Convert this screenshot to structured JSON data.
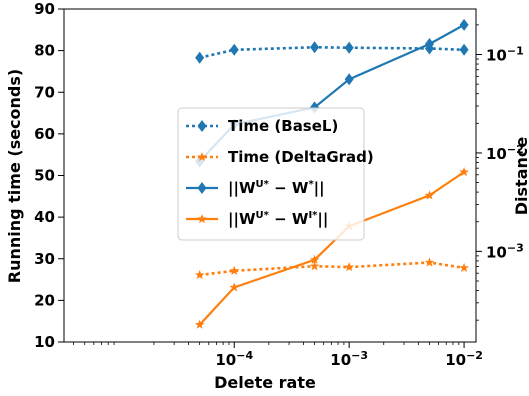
{
  "chart_data": {
    "type": "line",
    "xlabel": "Delete rate",
    "ylabel_left": "Running time (seconds)",
    "ylabel_right": "Distance",
    "x_scale": "log",
    "xlim": [
      3.3e-06,
      0.0127
    ],
    "ylim_left": [
      10,
      90
    ],
    "ylim_right_log": [
      0.00012,
      0.29
    ],
    "x_ticks": [
      {
        "value": 0.0001,
        "base": "10",
        "exp": "−4"
      },
      {
        "value": 0.001,
        "base": "10",
        "exp": "−3"
      },
      {
        "value": 0.01,
        "base": "10",
        "exp": "−2"
      }
    ],
    "y_ticks_left": [
      10,
      20,
      30,
      40,
      50,
      60,
      70,
      80,
      90
    ],
    "y_ticks_right": [
      {
        "value": 0.001,
        "base": "10",
        "exp": "−3"
      },
      {
        "value": 0.01,
        "base": "10",
        "exp": "−2"
      },
      {
        "value": 0.1,
        "base": "10",
        "exp": "−1"
      }
    ],
    "x": [
      5e-05,
      0.0001,
      0.0005,
      0.001,
      0.005,
      0.01
    ],
    "series": [
      {
        "name": "Time (BaseL)",
        "axis": "left",
        "color": "#1f77b4",
        "style": "dotted",
        "marker": "diamond",
        "values": [
          78.3,
          80.2,
          80.8,
          80.7,
          80.5,
          80.2
        ]
      },
      {
        "name": "Time (DeltaGrad)",
        "axis": "left",
        "color": "#ff7f0e",
        "style": "dotted",
        "marker": "star",
        "values": [
          26.1,
          27.1,
          28.2,
          28.0,
          29.1,
          27.8
        ]
      },
      {
        "name": "||W^{U*} − W^{*}||",
        "axis": "right",
        "color": "#1f77b4",
        "style": "solid",
        "marker": "diamond",
        "values": [
          0.0082,
          0.0195,
          0.029,
          0.056,
          0.128,
          0.2
        ]
      },
      {
        "name": "||W^{U*} − W^{I*}||",
        "axis": "right",
        "color": "#ff7f0e",
        "style": "solid",
        "marker": "star",
        "values": [
          0.00018,
          0.00043,
          0.00082,
          0.0018,
          0.0037,
          0.0064
        ]
      }
    ],
    "legend_entries": [
      {
        "plain": "Time (BaseL)"
      },
      {
        "plain": "Time (DeltaGrad)"
      },
      {
        "pre": "||W",
        "sup1": "U*",
        "mid": " − W",
        "sup2": "*",
        "post": "||"
      },
      {
        "pre": "||W",
        "sup1": "U*",
        "mid": " − W",
        "sup2": "I*",
        "post": "||"
      }
    ],
    "legend_position": "center",
    "grid": false
  }
}
